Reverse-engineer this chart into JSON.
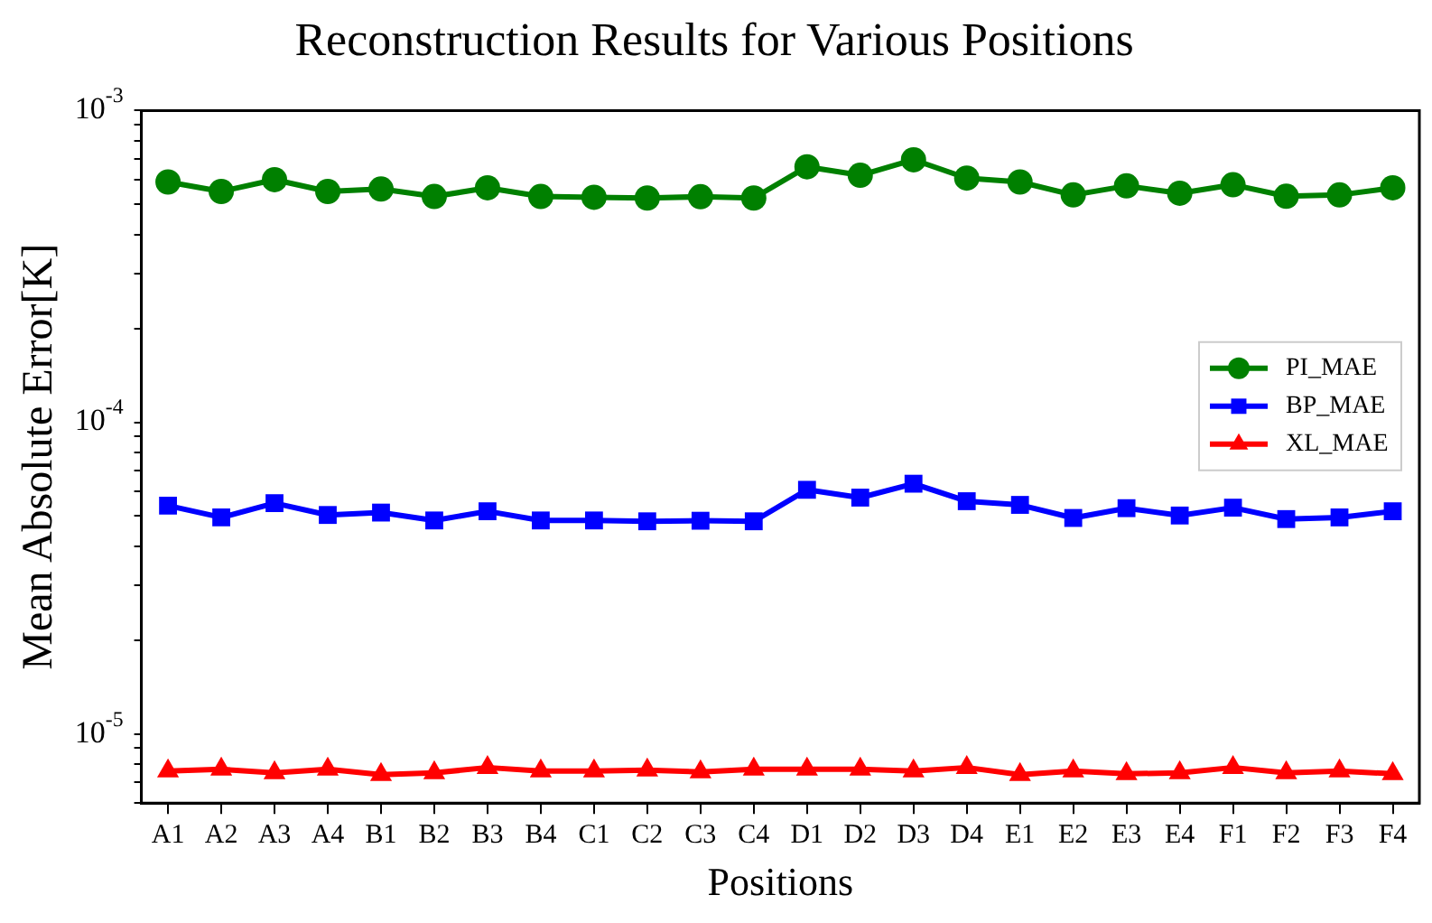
{
  "chart_data": {
    "type": "line",
    "title": "Reconstruction Results for Various Positions",
    "xlabel": "Positions",
    "ylabel": "Mean Absolute Error[K]",
    "categories": [
      "A1",
      "A2",
      "A3",
      "A4",
      "B1",
      "B2",
      "B3",
      "B4",
      "C1",
      "C2",
      "C3",
      "C4",
      "D1",
      "D2",
      "D3",
      "D4",
      "E1",
      "E2",
      "E3",
      "E4",
      "F1",
      "F2",
      "F3",
      "F4"
    ],
    "series": [
      {
        "name": "PI_MAE",
        "color": "#008000",
        "marker": "circle",
        "values": [
          0.00059,
          0.00055,
          0.0006,
          0.00055,
          0.00056,
          0.00053,
          0.000565,
          0.00053,
          0.000527,
          0.000524,
          0.000529,
          0.000524,
          0.00066,
          0.00062,
          0.000695,
          0.000607,
          0.00059,
          0.000536,
          0.000573,
          0.000543,
          0.000578,
          0.000531,
          0.000536,
          0.000565
        ]
      },
      {
        "name": "BP_MAE",
        "color": "#0000ff",
        "marker": "square",
        "values": [
          5.4e-05,
          4.95e-05,
          5.5e-05,
          5.04e-05,
          5.13e-05,
          4.84e-05,
          5.18e-05,
          4.84e-05,
          4.84e-05,
          4.81e-05,
          4.83e-05,
          4.81e-05,
          6.07e-05,
          5.73e-05,
          6.35e-05,
          5.58e-05,
          5.43e-05,
          4.93e-05,
          5.3e-05,
          5.02e-05,
          5.32e-05,
          4.89e-05,
          4.95e-05,
          5.18e-05
        ]
      },
      {
        "name": "XL_MAE",
        "color": "#ff0000",
        "marker": "triangle",
        "values": [
          7.6e-06,
          7.7e-06,
          7.5e-06,
          7.7e-06,
          7.4e-06,
          7.5e-06,
          7.8e-06,
          7.6e-06,
          7.6e-06,
          7.65e-06,
          7.55e-06,
          7.7e-06,
          7.7e-06,
          7.7e-06,
          7.6e-06,
          7.8e-06,
          7.4e-06,
          7.6e-06,
          7.45e-06,
          7.5e-06,
          7.8e-06,
          7.5e-06,
          7.6e-06,
          7.45e-06
        ]
      }
    ],
    "log": "y",
    "ylim": [
      6e-06,
      0.001
    ],
    "yticks": [
      {
        "value": 6e-06,
        "label": null
      },
      {
        "value": 7e-06,
        "label": null
      },
      {
        "value": 8e-06,
        "label": null
      },
      {
        "value": 9e-06,
        "label": null
      },
      {
        "value": 1e-05,
        "label": "10$^{-5}$"
      },
      {
        "value": 2e-05,
        "label": null
      },
      {
        "value": 3e-05,
        "label": null
      },
      {
        "value": 4e-05,
        "label": null
      },
      {
        "value": 5e-05,
        "label": null
      },
      {
        "value": 6e-05,
        "label": null
      },
      {
        "value": 7e-05,
        "label": null
      },
      {
        "value": 8e-05,
        "label": null
      },
      {
        "value": 9e-05,
        "label": null
      },
      {
        "value": 0.0001,
        "label": "10$^{-4}$"
      },
      {
        "value": 0.0002,
        "label": null
      },
      {
        "value": 0.0003,
        "label": null
      },
      {
        "value": 0.0004,
        "label": null
      },
      {
        "value": 0.0005,
        "label": null
      },
      {
        "value": 0.0006,
        "label": null
      },
      {
        "value": 0.0007,
        "label": null
      },
      {
        "value": 0.0008,
        "label": null
      },
      {
        "value": 0.0009,
        "label": null
      },
      {
        "value": 0.001,
        "label": "10$^{-3}$"
      }
    ],
    "grid": false,
    "legend": "right",
    "line_style": "solid"
  }
}
